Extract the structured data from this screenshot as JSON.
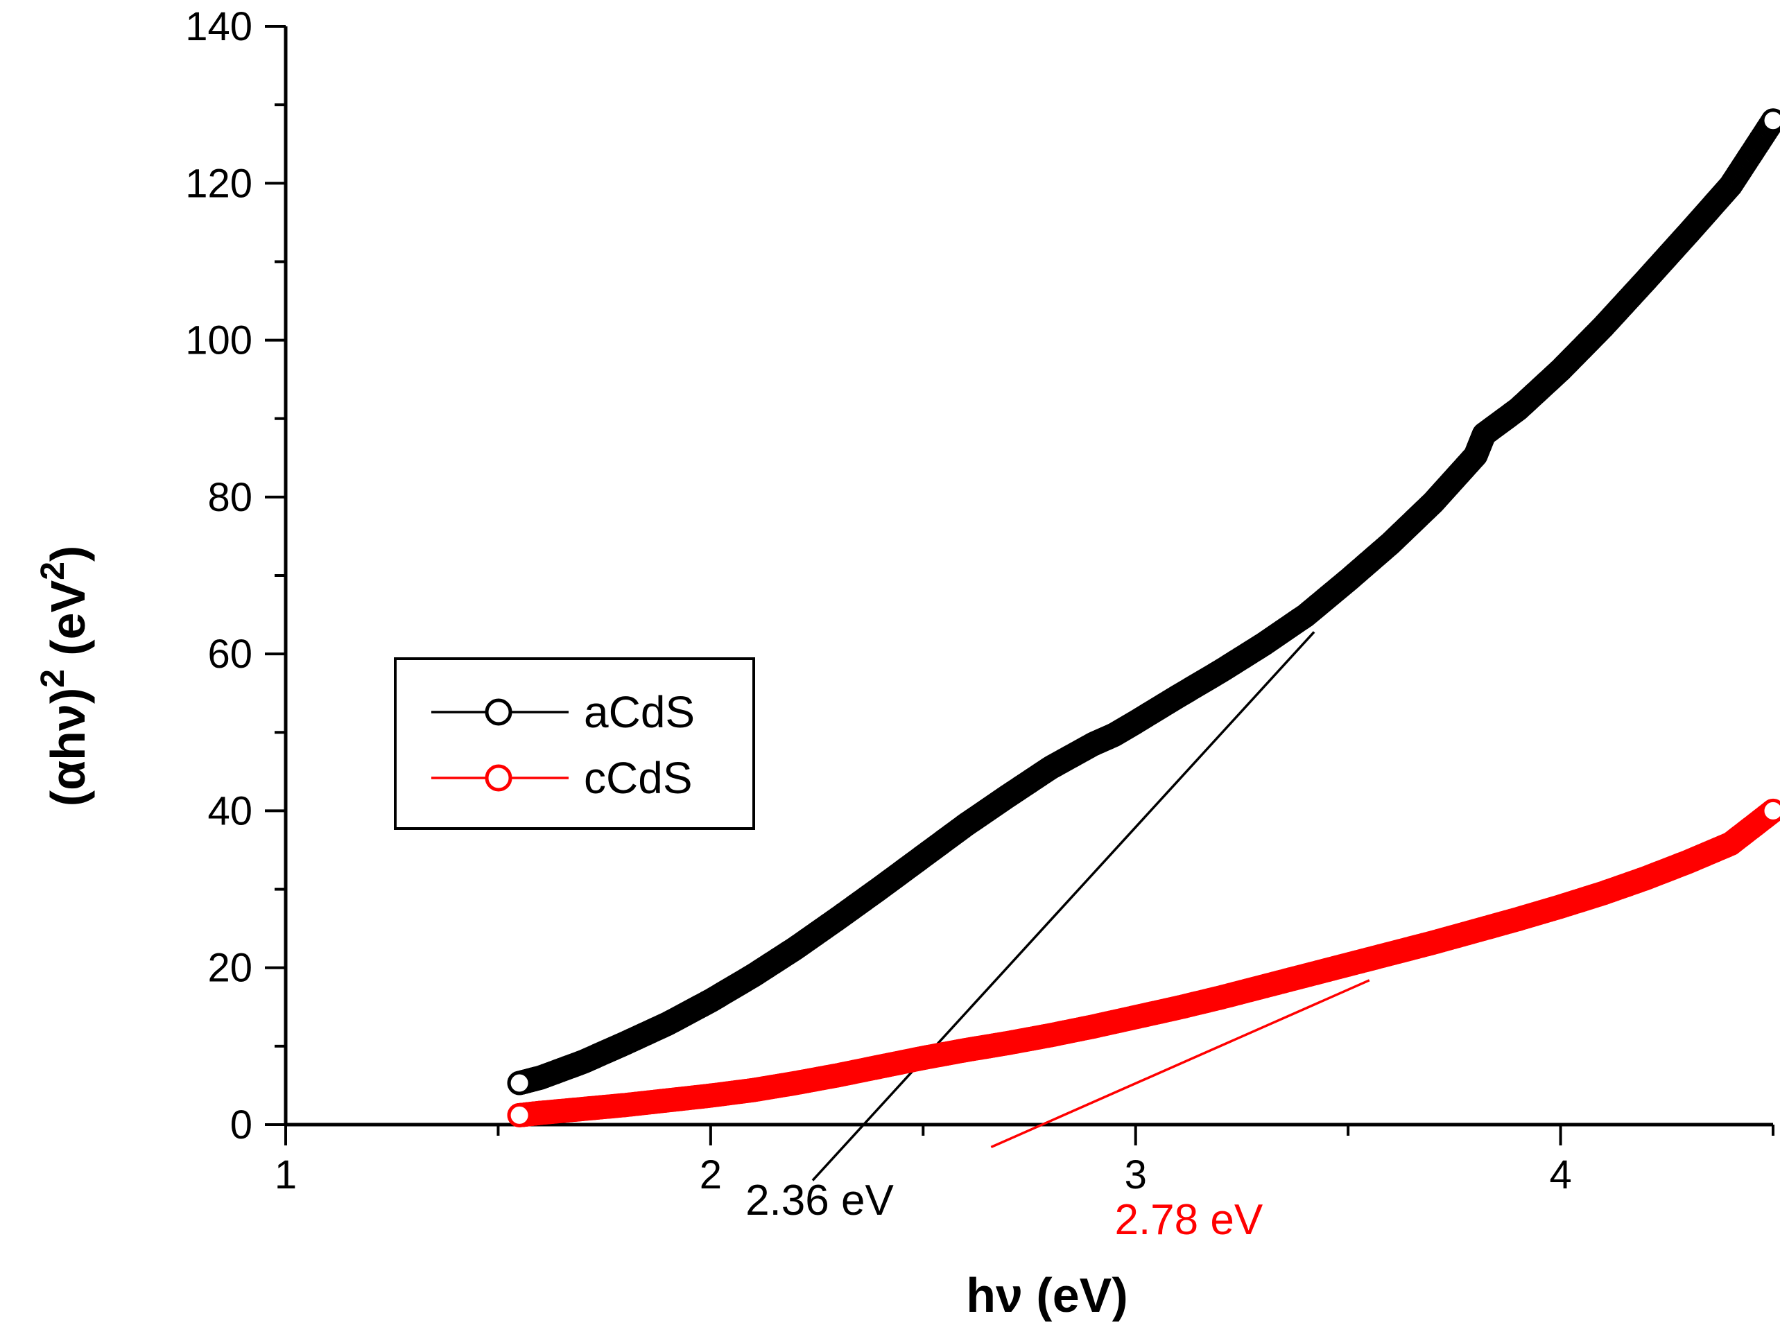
{
  "chart_data": {
    "type": "scatter",
    "xlabel": "hν (eV)",
    "ylabel_base": "(αhν)",
    "ylabel_exp": "2",
    "ylabel_unit_open": " (eV",
    "ylabel_unit_exp": "2",
    "ylabel_unit_close": ")",
    "xlim": [
      1,
      4.5
    ],
    "ylim": [
      0,
      140
    ],
    "x_ticks": [
      1,
      2,
      3,
      4
    ],
    "x_tick_labels": [
      "1",
      "2",
      "3",
      "4"
    ],
    "y_ticks": [
      0,
      20,
      40,
      60,
      80,
      100,
      120,
      140
    ],
    "y_tick_labels": [
      "0",
      "20",
      "40",
      "60",
      "80",
      "100",
      "120",
      "140"
    ],
    "legend_position": "middle-left",
    "series": [
      {
        "name": "aCdS",
        "color": "#000000",
        "marker": "open-circle",
        "x": [
          1.55,
          1.6,
          1.7,
          1.8,
          1.9,
          2.0,
          2.1,
          2.2,
          2.3,
          2.4,
          2.5,
          2.6,
          2.7,
          2.8,
          2.9,
          2.95,
          3.0,
          3.1,
          3.2,
          3.3,
          3.4,
          3.5,
          3.6,
          3.7,
          3.8,
          3.82,
          3.9,
          4.0,
          4.1,
          4.2,
          4.3,
          4.4,
          4.5
        ],
        "y": [
          5.3,
          6.0,
          8.0,
          10.4,
          12.9,
          15.8,
          19.0,
          22.5,
          26.3,
          30.2,
          34.2,
          38.2,
          41.9,
          45.5,
          48.5,
          49.7,
          51.3,
          54.6,
          57.8,
          61.2,
          64.9,
          69.4,
          74.1,
          79.3,
          85.3,
          88.0,
          91.2,
          96.2,
          101.7,
          107.6,
          113.6,
          119.7,
          128.0
        ]
      },
      {
        "name": "cCdS",
        "color": "#ff0000",
        "marker": "open-circle",
        "x": [
          1.55,
          1.6,
          1.7,
          1.8,
          1.9,
          2.0,
          2.1,
          2.2,
          2.3,
          2.4,
          2.5,
          2.6,
          2.7,
          2.8,
          2.9,
          3.0,
          3.1,
          3.2,
          3.3,
          3.4,
          3.5,
          3.6,
          3.7,
          3.8,
          3.9,
          4.0,
          4.1,
          4.2,
          4.3,
          4.4,
          4.5
        ],
        "y": [
          1.2,
          1.5,
          2.0,
          2.5,
          3.1,
          3.7,
          4.4,
          5.3,
          6.3,
          7.4,
          8.5,
          9.5,
          10.4,
          11.4,
          12.5,
          13.7,
          14.9,
          16.2,
          17.6,
          19.0,
          20.4,
          21.8,
          23.2,
          24.7,
          26.2,
          27.8,
          29.5,
          31.4,
          33.5,
          35.8,
          40.0
        ]
      }
    ],
    "tangent_lines": [
      {
        "series": "aCdS",
        "color": "#000000",
        "x_intercept": 2.36,
        "x_end": 3.42,
        "y_end": 62.8,
        "label": "2.36 eV"
      },
      {
        "series": "cCdS",
        "color": "#ff0000",
        "x_intercept": 2.78,
        "x_end": 3.55,
        "y_end": 18.4,
        "label": "2.78 eV"
      }
    ]
  }
}
